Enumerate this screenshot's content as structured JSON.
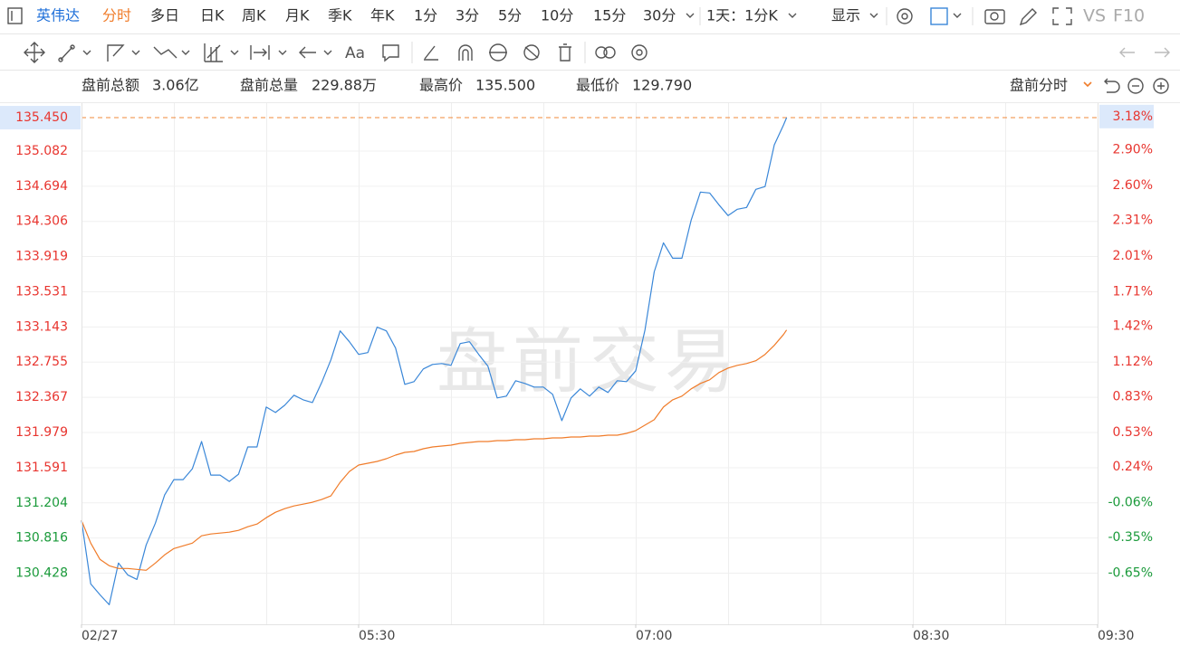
{
  "toolbar": {
    "stock": "英伟达",
    "periods": [
      "分时",
      "多日",
      "日K",
      "周K",
      "月K",
      "季K",
      "年K",
      "1分",
      "3分",
      "5分",
      "10分",
      "15分",
      "30分"
    ],
    "interval": "1天：1分K",
    "display": "显示",
    "vs": "VS",
    "f10": "F10"
  },
  "drawing_tools": {
    "text_tool": "Aa"
  },
  "stats": [
    {
      "label": "盘前总额",
      "value": "3.06亿"
    },
    {
      "label": "盘前总量",
      "value": "229.88万"
    },
    {
      "label": "最高价",
      "value": "135.500"
    },
    {
      "label": "最低价",
      "value": "129.790"
    }
  ],
  "view_mode": "盘前分时",
  "chart_data": {
    "type": "line",
    "watermark": "盘前交易",
    "x": [
      0,
      3,
      6,
      9,
      12,
      15,
      18,
      21,
      24,
      27,
      30,
      33,
      36,
      39,
      42,
      45,
      48,
      51,
      54,
      57,
      60,
      63,
      66,
      69,
      72,
      75,
      78,
      81,
      84,
      87,
      90,
      93,
      96,
      99,
      102,
      105,
      108,
      111,
      114,
      117,
      120,
      123,
      126,
      129,
      132,
      135,
      138,
      141,
      144,
      147,
      150,
      153,
      156,
      159,
      162,
      165,
      168,
      171,
      174,
      177,
      180,
      183,
      186,
      189,
      192,
      195,
      198,
      201,
      204,
      207,
      210,
      213,
      216,
      219,
      222,
      225,
      228,
      229
    ],
    "series": [
      {
        "color": "#3a87d8",
        "values": [
          131.01,
          130.31,
          130.19,
          130.08,
          130.54,
          130.41,
          130.36,
          130.74,
          130.98,
          131.29,
          131.46,
          131.46,
          131.58,
          131.88,
          131.51,
          131.51,
          131.44,
          131.52,
          131.82,
          131.82,
          132.26,
          132.2,
          132.28,
          132.39,
          132.34,
          132.31,
          132.53,
          132.78,
          133.1,
          132.98,
          132.84,
          132.86,
          133.14,
          133.1,
          132.91,
          132.51,
          132.54,
          132.68,
          132.73,
          132.74,
          132.72,
          132.96,
          132.98,
          132.84,
          132.71,
          132.36,
          132.38,
          132.55,
          132.52,
          132.48,
          132.48,
          132.4,
          132.11,
          132.36,
          132.46,
          132.38,
          132.48,
          132.42,
          132.55,
          132.54,
          132.66,
          133.11,
          133.75,
          134.07,
          133.9,
          133.9,
          134.32,
          134.63,
          134.62,
          134.49,
          134.37,
          134.44,
          134.46,
          134.66,
          134.69,
          135.15,
          135.37,
          135.45
        ]
      },
      {
        "color": "#f07c2a",
        "values": [
          131.01,
          130.76,
          130.58,
          130.51,
          130.48,
          130.48,
          130.47,
          130.46,
          130.54,
          130.63,
          130.7,
          130.73,
          130.76,
          130.84,
          130.86,
          130.87,
          130.88,
          130.9,
          130.94,
          130.97,
          131.04,
          131.1,
          131.14,
          131.17,
          131.19,
          131.21,
          131.24,
          131.28,
          131.43,
          131.55,
          131.62,
          131.64,
          131.66,
          131.69,
          131.73,
          131.76,
          131.77,
          131.8,
          131.82,
          131.83,
          131.84,
          131.86,
          131.87,
          131.88,
          131.88,
          131.89,
          131.89,
          131.9,
          131.9,
          131.91,
          131.91,
          131.92,
          131.92,
          131.93,
          131.93,
          131.94,
          131.94,
          131.95,
          131.95,
          131.97,
          132.0,
          132.06,
          132.12,
          132.26,
          132.34,
          132.38,
          132.46,
          132.52,
          132.56,
          132.64,
          132.69,
          132.72,
          132.74,
          132.77,
          132.84,
          132.94,
          133.06,
          133.11
        ]
      }
    ],
    "xlim": [
      0,
      330
    ],
    "xticks": [
      {
        "value": 0,
        "label": "02/27"
      },
      {
        "value": 90,
        "label": "05:30"
      },
      {
        "value": 180,
        "label": "07:00"
      },
      {
        "value": 270,
        "label": "08:30"
      },
      {
        "value": 330,
        "label": "09:30"
      }
    ],
    "ylim": [
      129.865,
      135.62
    ],
    "yticks": [
      {
        "value": 135.45,
        "label": "135.450"
      },
      135.082,
      134.694,
      134.306,
      133.919,
      133.531,
      133.143,
      132.755,
      132.367,
      131.979,
      131.591,
      131.204,
      130.816,
      130.428
    ],
    "y2lim": [
      -1.08,
      3.3
    ],
    "y2ticks": [
      {
        "value": 3.18,
        "label": "3.18%"
      },
      {
        "value": 2.9,
        "label": "2.90%"
      },
      {
        "value": 2.6,
        "label": "2.60%"
      },
      {
        "value": 2.31,
        "label": "2.31%"
      },
      {
        "value": 2.01,
        "label": "2.01%"
      },
      {
        "value": 1.71,
        "label": "1.71%"
      },
      {
        "value": 1.42,
        "label": "1.42%"
      },
      {
        "value": 1.12,
        "label": "1.12%"
      },
      {
        "value": 0.83,
        "label": "0.83%"
      },
      {
        "value": 0.53,
        "label": "0.53%"
      },
      {
        "value": 0.24,
        "label": "0.24%"
      },
      {
        "value": -0.06,
        "label": "-0.06%"
      },
      {
        "value": -0.35,
        "label": "-0.35%"
      },
      {
        "value": -0.65,
        "label": "-0.65%"
      }
    ],
    "grid": true,
    "up_color": "#e8352f",
    "down_color": "#1a9a3a"
  }
}
